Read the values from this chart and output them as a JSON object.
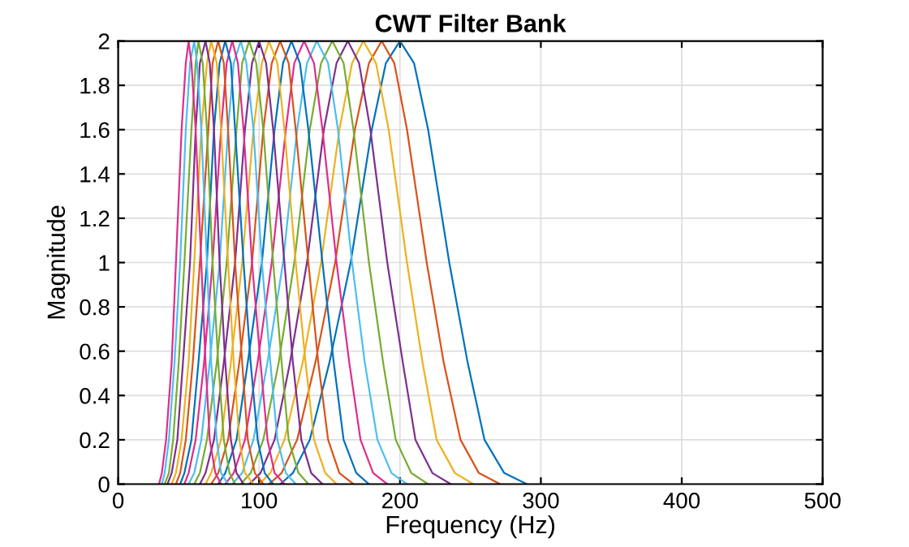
{
  "chart_data": {
    "type": "line",
    "title": "CWT Filter Bank",
    "xlabel": "Frequency (Hz)",
    "ylabel": "Magnitude",
    "xlim": [
      0,
      500
    ],
    "ylim": [
      0,
      2
    ],
    "xticks": [
      0,
      100,
      200,
      300,
      400,
      500
    ],
    "yticks": [
      0,
      0.2,
      0.4,
      0.6,
      0.8,
      1,
      1.2,
      1.4,
      1.6,
      1.8,
      2
    ],
    "grid": true,
    "legend": false,
    "series": [
      {
        "color": "#0072bd",
        "x": [
          115,
          124,
          136,
          150,
          165,
          180,
          190,
          200,
          210,
          220,
          235,
          248,
          260,
          274,
          290
        ],
        "values": [
          0,
          0.05,
          0.2,
          0.55,
          1,
          1.6,
          1.9,
          2,
          1.9,
          1.6,
          1,
          0.55,
          0.2,
          0.05,
          0
        ]
      },
      {
        "color": "#d95319",
        "x": [
          107,
          116,
          127,
          140,
          154,
          168,
          178,
          187,
          196,
          205,
          219,
          231,
          243,
          256,
          271
        ],
        "values": [
          0,
          0.05,
          0.2,
          0.55,
          1,
          1.6,
          1.9,
          2,
          1.9,
          1.6,
          1,
          0.55,
          0.2,
          0.05,
          0
        ]
      },
      {
        "color": "#edb120",
        "x": [
          100,
          108,
          118,
          131,
          144,
          157,
          166,
          174,
          183,
          192,
          205,
          216,
          226,
          239,
          252
        ],
        "values": [
          0,
          0.05,
          0.2,
          0.55,
          1,
          1.6,
          1.9,
          2,
          1.9,
          1.6,
          1,
          0.55,
          0.2,
          0.05,
          0
        ]
      },
      {
        "color": "#7e2f8e",
        "x": [
          93,
          101,
          111,
          122,
          134,
          146,
          155,
          163,
          171,
          179,
          191,
          202,
          211,
          223,
          236
        ],
        "values": [
          0,
          0.05,
          0.2,
          0.55,
          1,
          1.6,
          1.9,
          2,
          1.9,
          1.6,
          1,
          0.55,
          0.2,
          0.05,
          0
        ]
      },
      {
        "color": "#77ac30",
        "x": [
          87,
          94,
          103,
          114,
          125,
          136,
          144,
          152,
          160,
          167,
          178,
          188,
          197,
          208,
          220
        ],
        "values": [
          0,
          0.05,
          0.2,
          0.55,
          1,
          1.6,
          1.9,
          2,
          1.9,
          1.6,
          1,
          0.55,
          0.2,
          0.05,
          0
        ]
      },
      {
        "color": "#4dbeee",
        "x": [
          81,
          88,
          96,
          106,
          117,
          127,
          134,
          141,
          149,
          156,
          166,
          175,
          184,
          194,
          205
        ],
        "values": [
          0,
          0.05,
          0.2,
          0.55,
          1,
          1.6,
          1.9,
          2,
          1.9,
          1.6,
          1,
          0.55,
          0.2,
          0.05,
          0
        ]
      },
      {
        "color": "#de2d8c",
        "x": [
          76,
          82,
          90,
          99,
          109,
          119,
          125,
          132,
          139,
          145,
          155,
          164,
          172,
          181,
          191
        ],
        "values": [
          0,
          0.05,
          0.2,
          0.55,
          1,
          1.6,
          1.9,
          2,
          1.9,
          1.6,
          1,
          0.55,
          0.2,
          0.05,
          0
        ]
      },
      {
        "color": "#0072bd",
        "x": [
          71,
          76,
          84,
          92,
          102,
          111,
          117,
          123,
          129,
          135,
          145,
          153,
          160,
          169,
          178
        ],
        "values": [
          0,
          0.05,
          0.2,
          0.55,
          1,
          1.6,
          1.9,
          2,
          1.9,
          1.6,
          1,
          0.55,
          0.2,
          0.05,
          0
        ]
      },
      {
        "color": "#d95319",
        "x": [
          66,
          71,
          78,
          86,
          95,
          103,
          109,
          115,
          121,
          126,
          135,
          142,
          149,
          157,
          167
        ],
        "values": [
          0,
          0.05,
          0.2,
          0.55,
          1,
          1.6,
          1.9,
          2,
          1.9,
          1.6,
          1,
          0.55,
          0.2,
          0.05,
          0
        ]
      },
      {
        "color": "#edb120",
        "x": [
          62,
          66,
          73,
          80,
          88,
          96,
          102,
          107,
          113,
          118,
          126,
          133,
          139,
          147,
          155
        ],
        "values": [
          0,
          0.05,
          0.2,
          0.55,
          1,
          1.6,
          1.9,
          2,
          1.9,
          1.6,
          1,
          0.55,
          0.2,
          0.05,
          0
        ]
      },
      {
        "color": "#7e2f8e",
        "x": [
          58,
          62,
          68,
          75,
          83,
          90,
          95,
          100,
          105,
          110,
          118,
          124,
          130,
          137,
          145
        ],
        "values": [
          0,
          0.05,
          0.2,
          0.55,
          1,
          1.6,
          1.9,
          2,
          1.9,
          1.6,
          1,
          0.55,
          0.2,
          0.05,
          0
        ]
      },
      {
        "color": "#77ac30",
        "x": [
          54,
          58,
          63,
          70,
          77,
          84,
          88,
          93,
          98,
          103,
          110,
          116,
          121,
          128,
          135
        ],
        "values": [
          0,
          0.05,
          0.2,
          0.55,
          1,
          1.6,
          1.9,
          2,
          1.9,
          1.6,
          1,
          0.55,
          0.2,
          0.05,
          0
        ]
      },
      {
        "color": "#4dbeee",
        "x": [
          50,
          54,
          59,
          65,
          72,
          78,
          82,
          87,
          91,
          96,
          102,
          108,
          113,
          119,
          126
        ],
        "values": [
          0,
          0.05,
          0.2,
          0.55,
          1,
          1.6,
          1.9,
          2,
          1.9,
          1.6,
          1,
          0.55,
          0.2,
          0.05,
          0
        ]
      },
      {
        "color": "#de2d8c",
        "x": [
          47,
          50,
          55,
          61,
          67,
          73,
          77,
          81,
          85,
          89,
          95,
          101,
          106,
          111,
          118
        ],
        "values": [
          0,
          0.05,
          0.2,
          0.55,
          1,
          1.6,
          1.9,
          2,
          1.9,
          1.6,
          1,
          0.55,
          0.2,
          0.05,
          0
        ]
      },
      {
        "color": "#0072bd",
        "x": [
          44,
          47,
          52,
          57,
          63,
          68,
          72,
          76,
          80,
          83,
          89,
          94,
          99,
          104,
          110
        ],
        "values": [
          0,
          0.05,
          0.2,
          0.55,
          1,
          1.6,
          1.9,
          2,
          1.9,
          1.6,
          1,
          0.55,
          0.2,
          0.05,
          0
        ]
      },
      {
        "color": "#d95319",
        "x": [
          41,
          44,
          48,
          53,
          58,
          64,
          67,
          71,
          75,
          78,
          83,
          88,
          92,
          97,
          103
        ],
        "values": [
          0,
          0.05,
          0.2,
          0.55,
          1,
          1.6,
          1.9,
          2,
          1.9,
          1.6,
          1,
          0.55,
          0.2,
          0.05,
          0
        ]
      },
      {
        "color": "#edb120",
        "x": [
          38,
          41,
          45,
          50,
          54,
          59,
          63,
          66,
          70,
          73,
          78,
          82,
          86,
          90,
          96
        ],
        "values": [
          0,
          0.05,
          0.2,
          0.55,
          1,
          1.6,
          1.9,
          2,
          1.9,
          1.6,
          1,
          0.55,
          0.2,
          0.05,
          0
        ]
      },
      {
        "color": "#7e2f8e",
        "x": [
          35,
          38,
          42,
          46,
          51,
          55,
          58,
          62,
          65,
          68,
          72,
          76,
          80,
          84,
          89
        ],
        "values": [
          0,
          0.05,
          0.2,
          0.55,
          1,
          1.6,
          1.9,
          2,
          1.9,
          1.6,
          1,
          0.55,
          0.2,
          0.05,
          0
        ]
      },
      {
        "color": "#77ac30",
        "x": [
          33,
          36,
          39,
          43,
          47,
          52,
          55,
          57,
          60,
          63,
          67,
          71,
          75,
          79,
          83
        ],
        "values": [
          0,
          0.05,
          0.2,
          0.55,
          1,
          1.6,
          1.9,
          2,
          1.9,
          1.6,
          1,
          0.55,
          0.2,
          0.05,
          0
        ]
      },
      {
        "color": "#4dbeee",
        "x": [
          31,
          33,
          36,
          40,
          44,
          48,
          51,
          54,
          56,
          59,
          63,
          66,
          70,
          73,
          78
        ],
        "values": [
          0,
          0.05,
          0.2,
          0.55,
          1,
          1.6,
          1.9,
          2,
          1.9,
          1.6,
          1,
          0.55,
          0.2,
          0.05,
          0
        ]
      },
      {
        "color": "#de2d8c",
        "x": [
          29,
          31,
          34,
          38,
          41,
          45,
          48,
          50,
          52,
          55,
          59,
          62,
          65,
          69,
          73
        ],
        "values": [
          0,
          0.05,
          0.2,
          0.55,
          1,
          1.6,
          1.9,
          2,
          1.9,
          1.6,
          1,
          0.55,
          0.2,
          0.05,
          0
        ]
      }
    ]
  }
}
